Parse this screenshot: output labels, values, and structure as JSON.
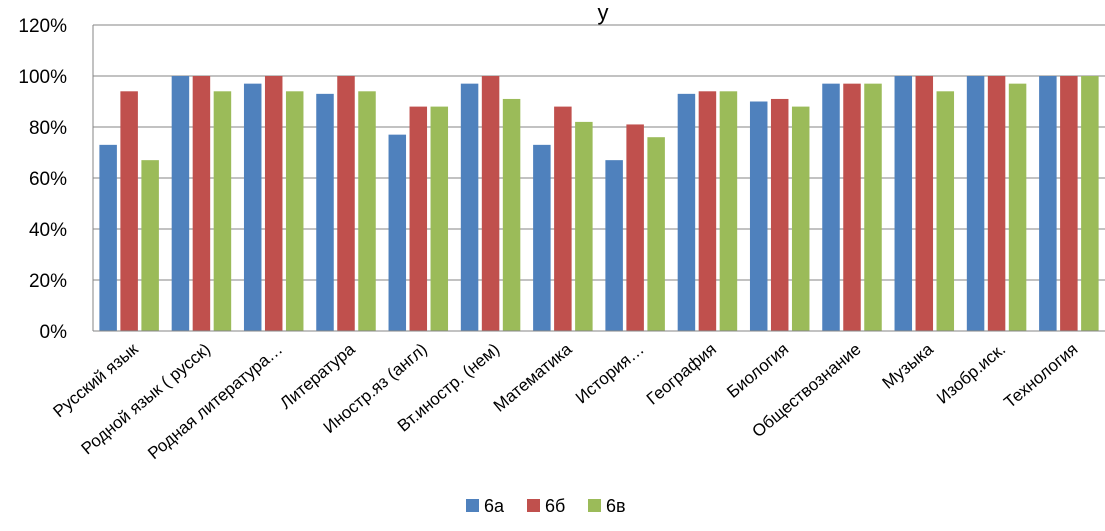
{
  "chart_data": {
    "type": "bar",
    "title": "у",
    "categories": [
      "Русский язык",
      "Родной язык ( русск)",
      "Родная литература…",
      "Литература",
      "Иностр.яз (англ)",
      "Вт.иностр. (нем)",
      "Математика",
      "История…",
      "География",
      "Биология",
      "Обществознание",
      "Музыка",
      "Изобр.иск.",
      "Технология"
    ],
    "series": [
      {
        "name": "6а",
        "color": "#4F81BD",
        "values": [
          73,
          100,
          97,
          93,
          77,
          97,
          73,
          67,
          93,
          90,
          97,
          100,
          100,
          100
        ]
      },
      {
        "name": "6б",
        "color": "#C0504D",
        "values": [
          94,
          100,
          100,
          100,
          88,
          100,
          88,
          81,
          94,
          91,
          97,
          100,
          100,
          100
        ]
      },
      {
        "name": "6в",
        "color": "#9BBB59",
        "values": [
          67,
          94,
          94,
          94,
          88,
          91,
          82,
          76,
          94,
          88,
          97,
          94,
          97,
          100
        ]
      }
    ],
    "ylim": [
      0,
      120
    ],
    "yticks": [
      "0%",
      "20%",
      "40%",
      "60%",
      "80%",
      "100%",
      "120%"
    ],
    "grid": true,
    "legend": "bottom"
  }
}
